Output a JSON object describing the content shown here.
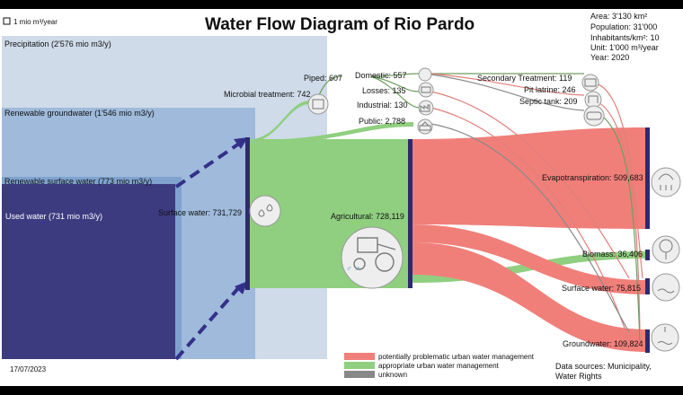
{
  "title": "Water Flow Diagram of Rio Pardo",
  "scale_label": "1 mio m³/year",
  "date": "17/07/2023",
  "info": {
    "area": "Area: 3'130 km²",
    "population": "Population: 31'000",
    "inhabitants": "Inhabitants/km²: 10",
    "unit": "Unit: 1'000 m³/year",
    "year": "Year: 2020"
  },
  "sources": {
    "precipitation": "Precipitation (2'576 mio m3/y)",
    "groundwater": "Renewable groundwater (1'546 mio m3/y)",
    "surface": "Renewable surface water (773 mio m3/y)",
    "used": "Used water (731 mio m3/y)"
  },
  "nodes": {
    "surface_water": "Surface water: 731,729",
    "microbial": "Microbial treatment: 742",
    "piped": "Piped: 607",
    "domestic": "Domestic: 557",
    "losses": "Losses: 135",
    "industrial": "Industrial: 130",
    "public": "Public: 2,788",
    "agricultural": "Agricultural: 728,119",
    "secondary": "Secondary Treatment: 119",
    "pit_latrine": "Pit latrine: 246",
    "septic": "Septic tank: 209",
    "evapo": "Evapotranspiration: 509,683",
    "biomass": "Biomass: 36,406",
    "surface_out": "Surface water: 75,815",
    "groundwater_out": "Groundwater: 109,824"
  },
  "legend": {
    "problematic": "potentially problematic urban water management",
    "appropriate": "appropriate urban water management",
    "unknown": "unknown"
  },
  "data_sources": [
    "Data sources: Municipality,",
    "Water Rights"
  ],
  "colors": {
    "precipitation": "#cfdbe9",
    "groundwater": "#9fbadb",
    "surface": "#7fa2cf",
    "used": "#3d3b80",
    "green": "#8fcf7f",
    "red": "#f07f7a",
    "grey": "#888888",
    "node": "#2e2a6e"
  },
  "icons": [
    "water-drops-icon",
    "tractor-icon",
    "toilet-icon",
    "sink-icon",
    "factory-icon",
    "faucet-icon",
    "treatment-plant-icon",
    "pit-latrine-icon",
    "septic-tank-icon",
    "evaporation-icon",
    "tree-icon",
    "river-icon",
    "groundwater-icon"
  ]
}
